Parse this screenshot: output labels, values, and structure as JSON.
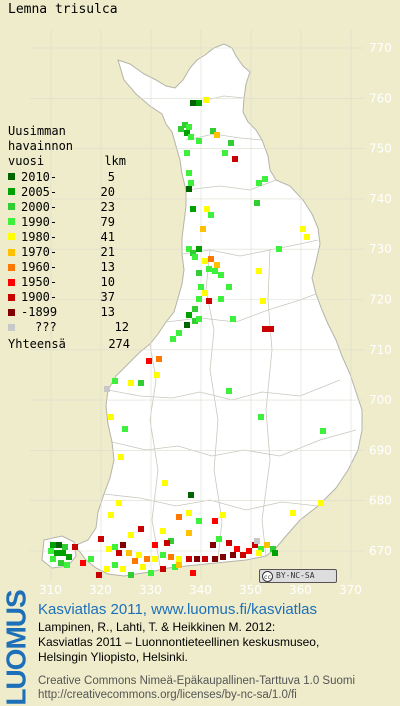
{
  "title": "Lemna trisulca",
  "colors": {
    "background": "#eeeccb",
    "land": "#ffffff",
    "border": "#b4b4aa",
    "grid": "#c8c8be",
    "axis_label": "#ffffff",
    "brand": "#1d6fb8"
  },
  "legend": {
    "header_lines": [
      "Uusimman",
      "havainnon"
    ],
    "header_col1": "vuosi",
    "header_col2": "lkm",
    "rows": [
      {
        "label": "2010-",
        "count": "5",
        "color": "#006400"
      },
      {
        "label": "2005-",
        "count": "20",
        "color": "#00a000"
      },
      {
        "label": "2000-",
        "count": "23",
        "color": "#32cd32"
      },
      {
        "label": "1990-",
        "count": "79",
        "color": "#3cf03c"
      },
      {
        "label": "1980-",
        "count": "41",
        "color": "#ffff00"
      },
      {
        "label": "1970-",
        "count": "21",
        "color": "#ffc000"
      },
      {
        "label": "1960-",
        "count": "13",
        "color": "#ff7800"
      },
      {
        "label": "1950-",
        "count": "10",
        "color": "#ff0000"
      },
      {
        "label": "1900-",
        "count": "37",
        "color": "#c80000"
      },
      {
        "label": "-1899",
        "count": "13",
        "color": "#800000"
      },
      {
        "label": "???",
        "count": "12",
        "color": "#c8c8c8"
      }
    ],
    "total_label": "Yhteensä",
    "total_count": "274"
  },
  "map": {
    "northing_ticks": [
      "770",
      "760",
      "750",
      "740",
      "730",
      "720",
      "710",
      "700",
      "690",
      "680",
      "670"
    ],
    "easting_ticks": [
      "310",
      "320",
      "330",
      "340",
      "350",
      "360",
      "370"
    ]
  },
  "license_badge": {
    "icon": "cc-icon",
    "text": "BY-NC-SA"
  },
  "footer": {
    "brand": "LUOMUS",
    "atlas_line": "Kasviatlas 2011, www.luomus.fi/kasviatlas",
    "citation": [
      "Lampinen, R., Lahti, T. & Heikkinen M. 2012:",
      "Kasviatlas 2011 – Luonnontieteellinen keskusmuseo,",
      "Helsingin Yliopisto, Helsinki."
    ],
    "license": [
      "Creative Commons Nimeä-Epäkaupallinen-Tarttuva 1.0 Suomi",
      "http://creativecommons.org/licenses/by-nc-sa/1.0/fi"
    ]
  }
}
